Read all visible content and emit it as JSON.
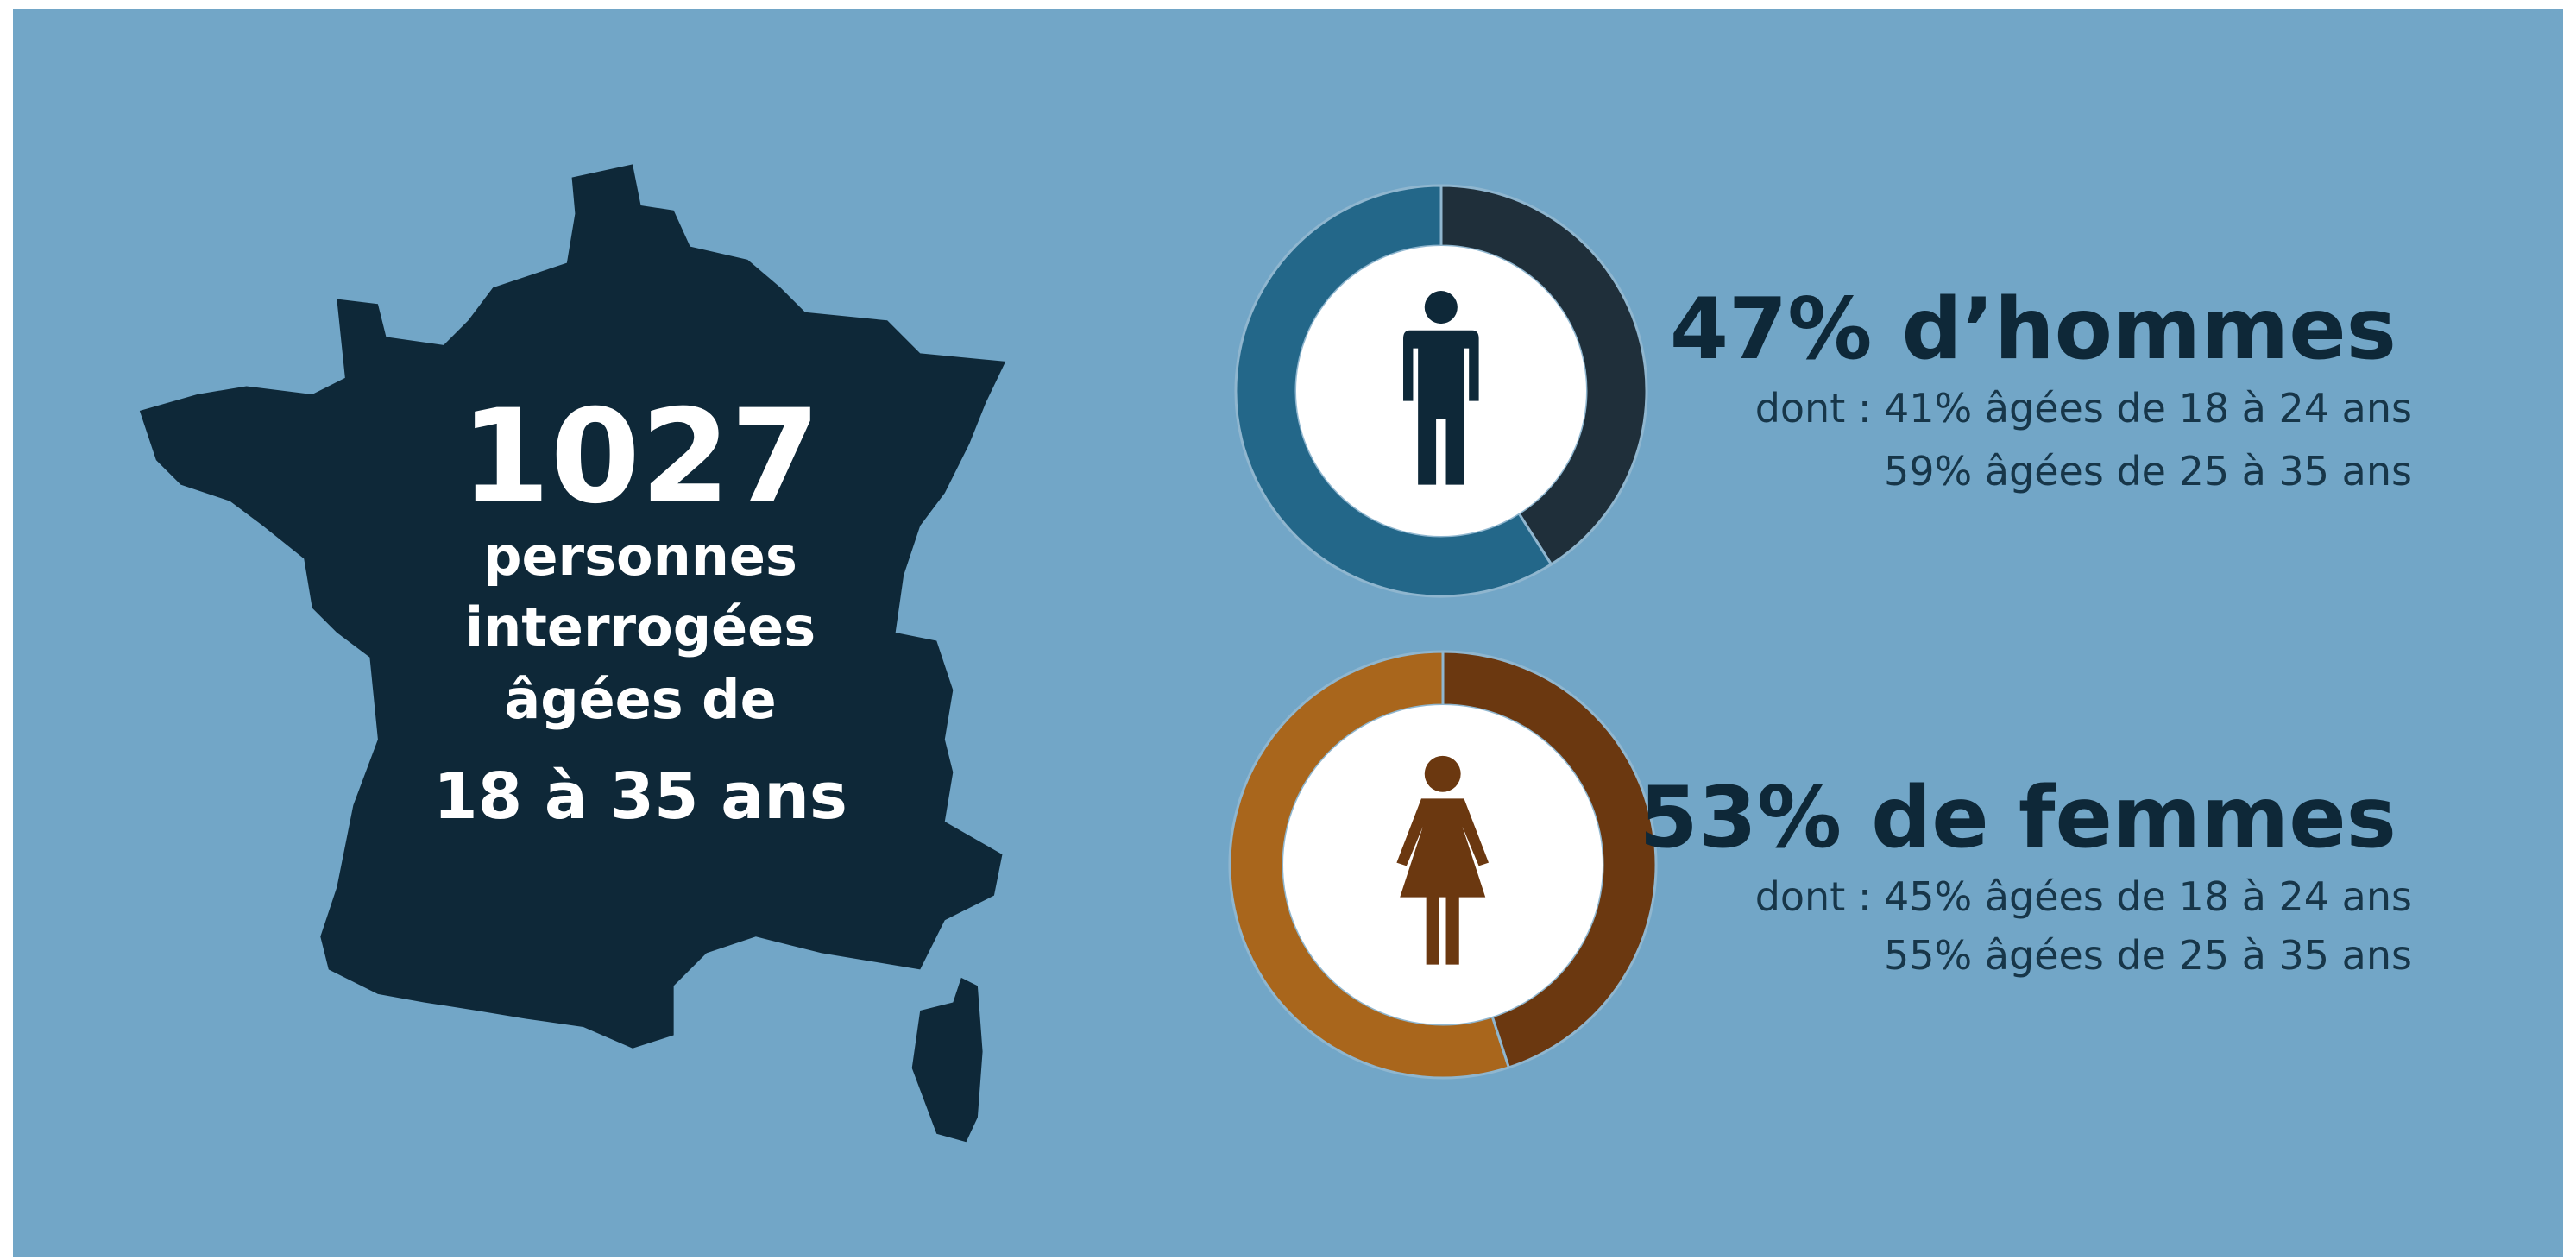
{
  "headline": {
    "number": "1027",
    "lines": [
      "personnes",
      "interrogées",
      "âgées de",
      "18 à 35 ans"
    ]
  },
  "chart_data": [
    {
      "type": "donut",
      "title": "47% d’hommes",
      "categories": [
        "dont : 41% âgées de 18 à 24 ans",
        "59% âgées de 25 à 35 ans"
      ],
      "values": [
        41,
        59
      ],
      "colors": [
        "#1f2f3a",
        "#236789"
      ]
    },
    {
      "type": "donut",
      "title": "53% de femmes",
      "categories": [
        "dont : 45% âgées de 18 à 24 ans",
        "55% âgées de 25 à 35 ans"
      ],
      "values": [
        45,
        55
      ],
      "colors": [
        "#6b3810",
        "#a9661c"
      ]
    }
  ]
}
